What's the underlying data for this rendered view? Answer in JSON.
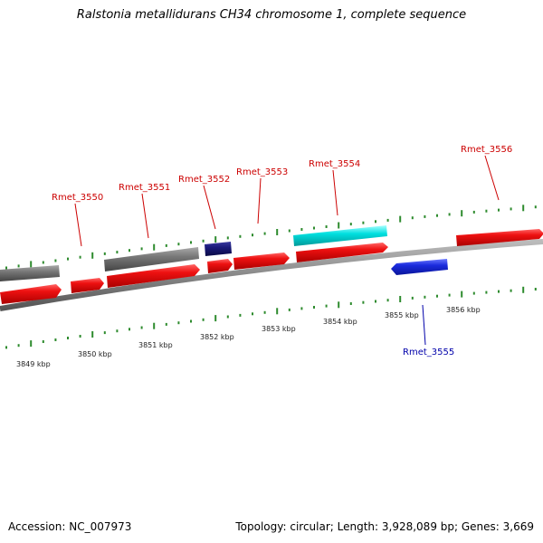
{
  "title": "Ralstonia metallidurans CH34 chromosome 1, complete sequence",
  "footer": {
    "accession": "Accession: NC_007973",
    "summary": "Topology: circular; Length: 3,928,089 bp; Genes: 3,669"
  },
  "colors": {
    "backbone": "#888888",
    "tick": "#2e8b2e",
    "forward_cds": "#ee1111",
    "forward_other": "#777777",
    "forward_rna": "#1a1a7a",
    "reverse_cds": "#1a2bdd",
    "highlight": "#00e0e0",
    "label_forward": "#cc0000",
    "label_reverse": "#0000aa"
  },
  "scale_labels": [
    "3849 kbp",
    "3850 kbp",
    "3851 kbp",
    "3852 kbp",
    "3853 kbp",
    "3854 kbp",
    "3855 kbp",
    "3856 kbp"
  ],
  "gene_labels": [
    {
      "text": "Rmet_3550",
      "strand": "forward"
    },
    {
      "text": "Rmet_3551",
      "strand": "forward"
    },
    {
      "text": "Rmet_3552",
      "strand": "forward"
    },
    {
      "text": "Rmet_3553",
      "strand": "forward"
    },
    {
      "text": "Rmet_3554",
      "strand": "forward"
    },
    {
      "text": "Rmet_3556",
      "strand": "forward"
    },
    {
      "text": "Rmet_3555",
      "strand": "reverse"
    }
  ]
}
